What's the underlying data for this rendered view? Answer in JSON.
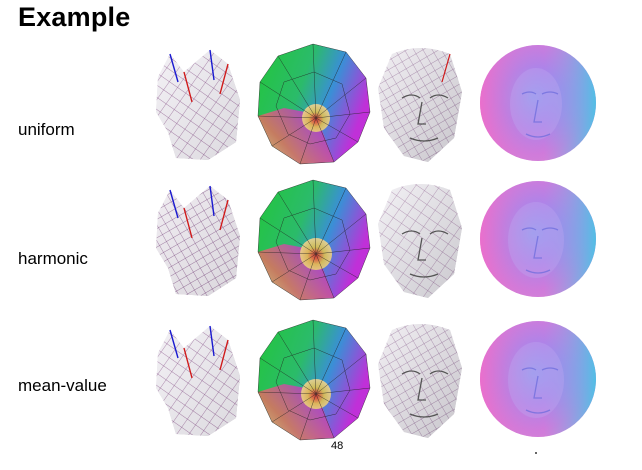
{
  "slide": {
    "title": "Example",
    "rows": [
      {
        "label": "uniform"
      },
      {
        "label": "harmonic"
      },
      {
        "label": "mean-value"
      }
    ],
    "columns": [
      {
        "icon": "cat-head-mesh"
      },
      {
        "icon": "parameterization-disk-mesh"
      },
      {
        "icon": "face-mesh"
      },
      {
        "icon": "normal-map-disk"
      }
    ],
    "page_number": "48"
  }
}
